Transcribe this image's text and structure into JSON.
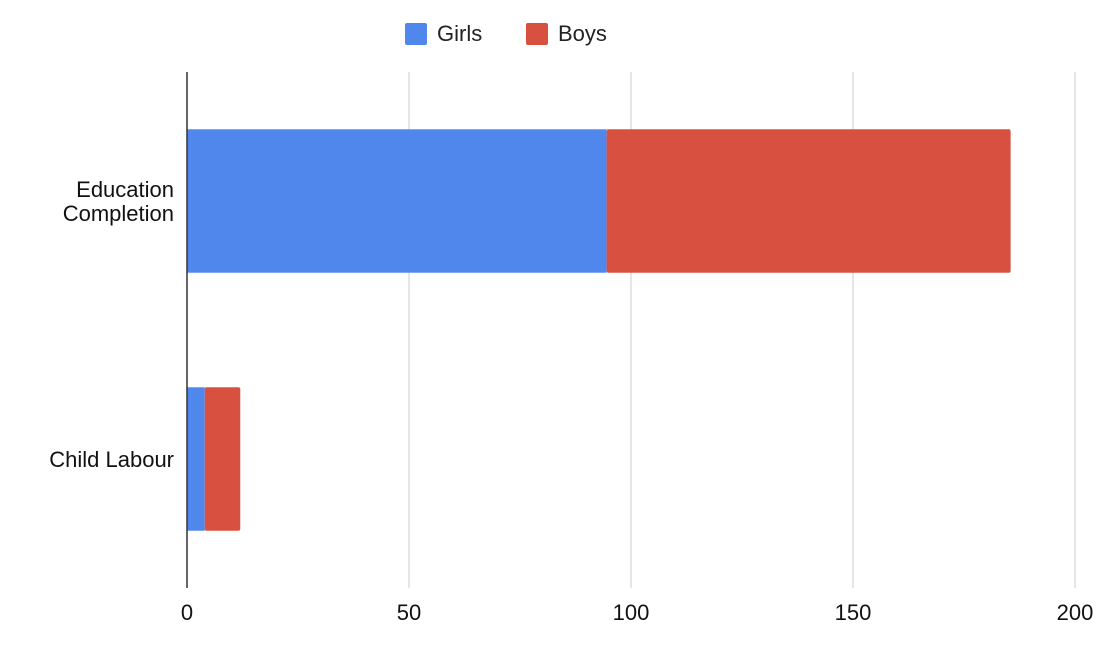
{
  "chart_data": {
    "type": "bar",
    "orientation": "horizontal",
    "stacked": true,
    "categories": [
      "Education Completion",
      "Child Labour"
    ],
    "category_lines": [
      [
        "Education",
        "Completion"
      ],
      [
        "Child Labour"
      ]
    ],
    "series": [
      {
        "name": "Girls",
        "color": "#5087EC",
        "values": [
          94.5,
          4
        ]
      },
      {
        "name": "Boys",
        "color": "#D85040",
        "values": [
          91,
          8
        ]
      }
    ],
    "xlim": [
      0,
      200
    ],
    "xticks": [
      0,
      50,
      100,
      150,
      200
    ],
    "grid": true,
    "legend_position": "top"
  }
}
